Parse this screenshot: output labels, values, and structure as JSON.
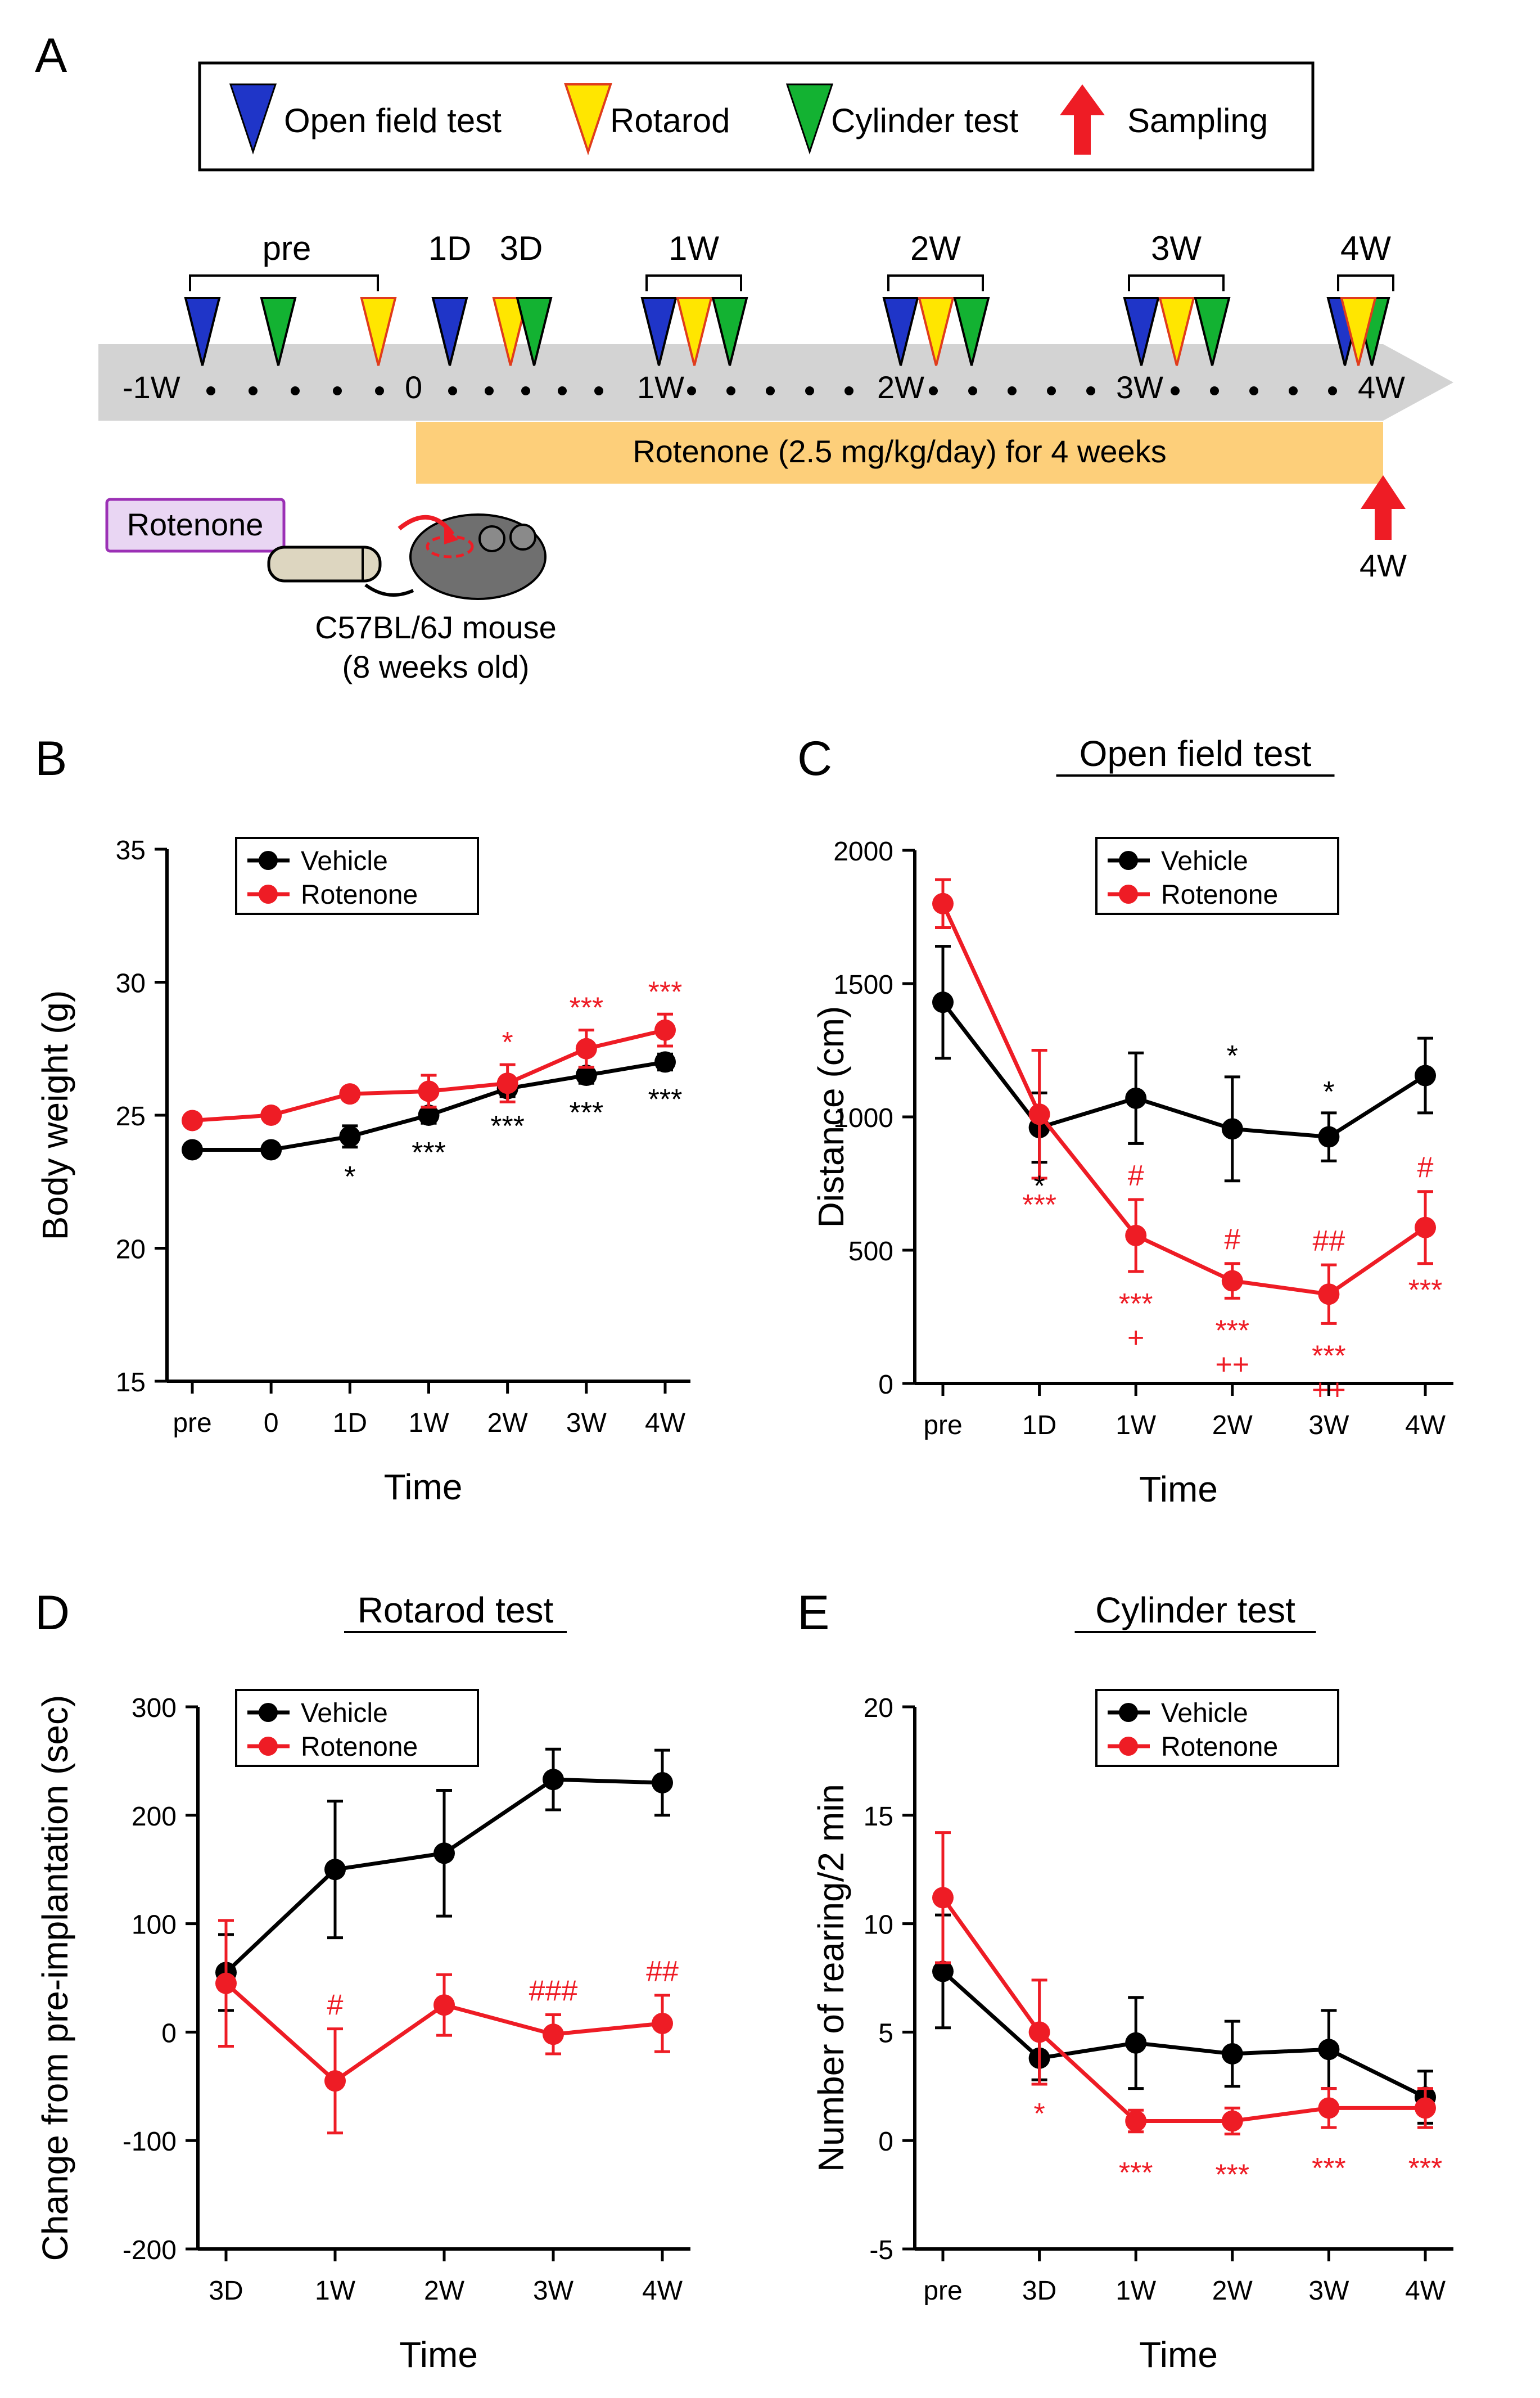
{
  "colors": {
    "vehicle": "#000000",
    "rotenone": "#ee1c25",
    "open_field": "#1f35c8",
    "rotarod": "#ffe600",
    "cylinder": "#13b232",
    "sampling": "#ee1c25",
    "timeline": "#d3d3d3",
    "treatment": "#fdcf7a",
    "tag": "#e9d6f3"
  },
  "panel_a": {
    "label": "A",
    "legend": {
      "open_field": "Open field test",
      "rotarod": "Rotarod",
      "cylinder": "Cylinder test",
      "sampling": "Sampling"
    },
    "timeline_labels": [
      "-1W",
      "0",
      "1W",
      "2W",
      "3W",
      "4W"
    ],
    "bracket_labels": [
      "pre",
      "1D",
      "3D",
      "1W",
      "2W",
      "3W",
      "4W"
    ],
    "treatment": "Rotenone (2.5 mg/kg/day) for 4 weeks",
    "sampling_label": "4W",
    "tag": "Rotenone",
    "mouse": [
      "C57BL/6J mouse",
      "(8 weeks old)"
    ]
  },
  "chart_data": [
    {
      "panel": "B",
      "type": "line",
      "title": "",
      "xlabel": "Time",
      "ylabel": "Body weight (g)",
      "categories": [
        "pre",
        "0",
        "1D",
        "1W",
        "2W",
        "3W",
        "4W"
      ],
      "ylim": [
        15,
        35
      ],
      "yticks": [
        15,
        20,
        25,
        30,
        35
      ],
      "series": [
        {
          "name": "Vehicle",
          "values": [
            23.7,
            23.7,
            24.2,
            25.0,
            26.0,
            26.5,
            27.0
          ],
          "errors": [
            0.1,
            0.1,
            0.4,
            0.3,
            0.3,
            0.3,
            0.3
          ]
        },
        {
          "name": "Rotenone",
          "values": [
            24.8,
            25.0,
            25.8,
            25.9,
            26.2,
            27.5,
            28.2
          ],
          "errors": [
            0.1,
            0.1,
            0.2,
            0.6,
            0.7,
            0.7,
            0.6
          ]
        }
      ],
      "annotations": [
        {
          "series": "Vehicle",
          "x": "1D",
          "text": "*"
        },
        {
          "series": "Vehicle",
          "x": "1W",
          "text": "***"
        },
        {
          "series": "Vehicle",
          "x": "2W",
          "text": "***"
        },
        {
          "series": "Vehicle",
          "x": "3W",
          "text": "***"
        },
        {
          "series": "Vehicle",
          "x": "4W",
          "text": "***"
        },
        {
          "series": "Rotenone",
          "x": "2W",
          "text": "*"
        },
        {
          "series": "Rotenone",
          "x": "3W",
          "text": "***"
        },
        {
          "series": "Rotenone",
          "x": "4W",
          "text": "***"
        }
      ]
    },
    {
      "panel": "C",
      "type": "line",
      "title": "Open field test",
      "xlabel": "Time",
      "ylabel": "Distance (cm)",
      "categories": [
        "pre",
        "1D",
        "1W",
        "2W",
        "3W",
        "4W"
      ],
      "ylim": [
        0,
        2000
      ],
      "yticks": [
        0,
        500,
        1000,
        1500,
        2000
      ],
      "series": [
        {
          "name": "Vehicle",
          "values": [
            1430,
            960,
            1070,
            955,
            925,
            1155
          ],
          "errors": [
            210,
            130,
            170,
            195,
            90,
            140
          ]
        },
        {
          "name": "Rotenone",
          "values": [
            1800,
            1010,
            555,
            385,
            335,
            585
          ],
          "errors": [
            90,
            240,
            135,
            65,
            110,
            135
          ]
        }
      ],
      "annotations": [
        {
          "series": "Vehicle",
          "x": "1D",
          "text": "*"
        },
        {
          "series": "Vehicle",
          "x": "2W",
          "text": "*"
        },
        {
          "series": "Vehicle",
          "x": "3W",
          "text": "*"
        },
        {
          "series": "Rotenone",
          "x": "1D",
          "text": "***"
        },
        {
          "series": "Rotenone",
          "x": "1W",
          "text": "#"
        },
        {
          "series": "Rotenone",
          "x": "1W",
          "text": "***"
        },
        {
          "series": "Rotenone",
          "x": "1W",
          "text": "+"
        },
        {
          "series": "Rotenone",
          "x": "2W",
          "text": "#"
        },
        {
          "series": "Rotenone",
          "x": "2W",
          "text": "***"
        },
        {
          "series": "Rotenone",
          "x": "2W",
          "text": "++"
        },
        {
          "series": "Rotenone",
          "x": "3W",
          "text": "##"
        },
        {
          "series": "Rotenone",
          "x": "3W",
          "text": "***"
        },
        {
          "series": "Rotenone",
          "x": "3W",
          "text": "++"
        },
        {
          "series": "Rotenone",
          "x": "4W",
          "text": "#"
        },
        {
          "series": "Rotenone",
          "x": "4W",
          "text": "***"
        }
      ]
    },
    {
      "panel": "D",
      "type": "line",
      "title": "Rotarod test",
      "xlabel": "Time",
      "ylabel": "Change from pre-implantation (sec)",
      "categories": [
        "3D",
        "1W",
        "2W",
        "3W",
        "4W"
      ],
      "ylim": [
        -200,
        300
      ],
      "yticks": [
        -200,
        -100,
        0,
        100,
        200,
        300
      ],
      "series": [
        {
          "name": "Vehicle",
          "values": [
            55,
            150,
            165,
            233,
            230
          ],
          "errors": [
            35,
            63,
            58,
            28,
            30
          ]
        },
        {
          "name": "Rotenone",
          "values": [
            45,
            -45,
            25,
            -2,
            8
          ],
          "errors": [
            58,
            48,
            28,
            18,
            26
          ]
        }
      ],
      "annotations": [
        {
          "series": "Rotenone",
          "x": "1W",
          "text": "#"
        },
        {
          "series": "Rotenone",
          "x": "3W",
          "text": "###"
        },
        {
          "series": "Rotenone",
          "x": "4W",
          "text": "##"
        }
      ]
    },
    {
      "panel": "E",
      "type": "line",
      "title": "Cylinder test",
      "xlabel": "Time",
      "ylabel": "Number of rearing/2 min",
      "categories": [
        "pre",
        "3D",
        "1W",
        "2W",
        "3W",
        "4W"
      ],
      "ylim": [
        -5,
        20
      ],
      "yticks": [
        -5,
        0,
        5,
        10,
        15,
        20
      ],
      "series": [
        {
          "name": "Vehicle",
          "values": [
            7.8,
            3.8,
            4.5,
            4.0,
            4.2,
            2.0
          ],
          "errors": [
            2.6,
            1.0,
            2.1,
            1.5,
            1.8,
            1.2
          ]
        },
        {
          "name": "Rotenone",
          "values": [
            11.2,
            5.0,
            0.9,
            0.9,
            1.5,
            1.5
          ],
          "errors": [
            3.0,
            2.4,
            0.5,
            0.6,
            0.9,
            0.9
          ]
        }
      ],
      "annotations": [
        {
          "series": "Rotenone",
          "x": "3D",
          "text": "*"
        },
        {
          "series": "Rotenone",
          "x": "1W",
          "text": "***"
        },
        {
          "series": "Rotenone",
          "x": "2W",
          "text": "***"
        },
        {
          "series": "Rotenone",
          "x": "3W",
          "text": "***"
        },
        {
          "series": "Rotenone",
          "x": "4W",
          "text": "***"
        }
      ]
    }
  ]
}
